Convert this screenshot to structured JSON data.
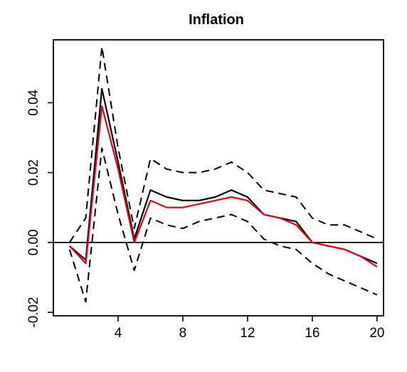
{
  "chart_data": {
    "type": "line",
    "title": "Inflation",
    "xlabel": "",
    "ylabel": "",
    "xlim": [
      0,
      20.4
    ],
    "ylim": [
      -0.021,
      0.058
    ],
    "xticks": [
      4,
      8,
      12,
      16,
      20
    ],
    "xtick_labels": [
      "4",
      "8",
      "12",
      "16",
      "20"
    ],
    "yticks": [
      -0.02,
      0.0,
      0.02,
      0.04
    ],
    "ytick_labels": [
      "-0.02",
      "0.00",
      "0.02",
      "0.04"
    ],
    "zero_line": 0,
    "grid": false,
    "legend": "none",
    "x": [
      1,
      2,
      3,
      4,
      5,
      6,
      7,
      8,
      9,
      10,
      11,
      12,
      13,
      14,
      15,
      16,
      17,
      18,
      19,
      20
    ],
    "series": [
      {
        "role": "upper-band",
        "color": "#000000",
        "style": "dashed",
        "values": [
          0.0,
          0.007,
          0.056,
          0.027,
          0.004,
          0.024,
          0.021,
          0.02,
          0.02,
          0.021,
          0.023,
          0.02,
          0.015,
          0.014,
          0.013,
          0.007,
          0.005,
          0.005,
          0.003,
          0.001
        ]
      },
      {
        "role": "lower-band",
        "color": "#000000",
        "style": "dashed",
        "values": [
          -0.002,
          -0.017,
          0.027,
          0.008,
          -0.008,
          0.007,
          0.005,
          0.004,
          0.006,
          0.007,
          0.008,
          0.006,
          0.001,
          -0.001,
          -0.002,
          -0.006,
          -0.009,
          -0.011,
          -0.013,
          -0.015
        ]
      },
      {
        "role": "black-line",
        "color": "#000000",
        "style": "solid",
        "values": [
          -0.001,
          -0.005,
          0.044,
          0.023,
          0.001,
          0.015,
          0.013,
          0.012,
          0.012,
          0.013,
          0.015,
          0.013,
          0.008,
          0.007,
          0.006,
          0.0,
          -0.001,
          -0.002,
          -0.004,
          -0.006
        ]
      },
      {
        "role": "red-line",
        "color": "#e3001b",
        "style": "solid",
        "values": [
          -0.001,
          -0.006,
          0.039,
          0.021,
          0.0,
          0.012,
          0.01,
          0.01,
          0.011,
          0.012,
          0.013,
          0.012,
          0.008,
          0.007,
          0.005,
          0.0,
          -0.001,
          -0.002,
          -0.004,
          -0.007
        ]
      }
    ]
  }
}
